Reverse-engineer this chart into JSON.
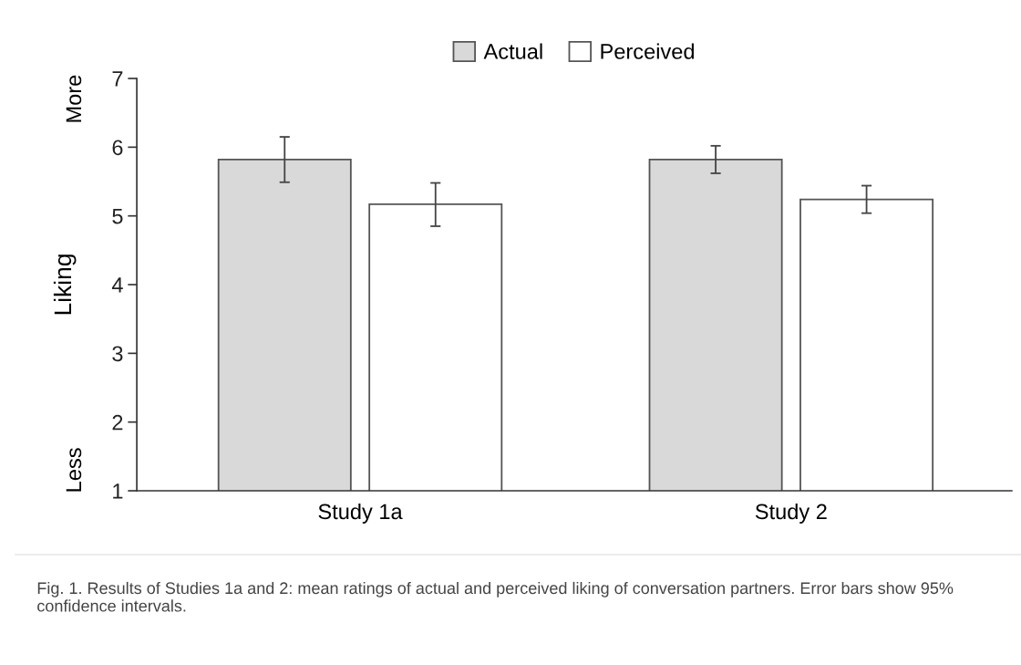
{
  "chart_data": {
    "type": "bar",
    "ylabel": "Liking",
    "categories": [
      "Study 1a",
      "Study 2"
    ],
    "series": [
      {
        "name": "Actual",
        "color": "#d9d9d9",
        "values": [
          5.82,
          5.82
        ],
        "errors": [
          [
            5.49,
            6.15
          ],
          [
            5.62,
            6.02
          ]
        ]
      },
      {
        "name": "Perceived",
        "color": "#ffffff",
        "values": [
          5.17,
          5.24
        ],
        "errors": [
          [
            4.85,
            5.48
          ],
          [
            5.04,
            5.44
          ]
        ]
      }
    ],
    "ylim": [
      1,
      7
    ],
    "yticks": [
      1,
      2,
      3,
      4,
      5,
      6,
      7
    ],
    "grid": false,
    "legend": "top",
    "annotations": [
      "More",
      "Less",
      "Fig. 1. Results of Studies 1a and 2: mean ratings of actual and perceived liking of conversation partners. Error bars show 95% confidence intervals."
    ]
  }
}
